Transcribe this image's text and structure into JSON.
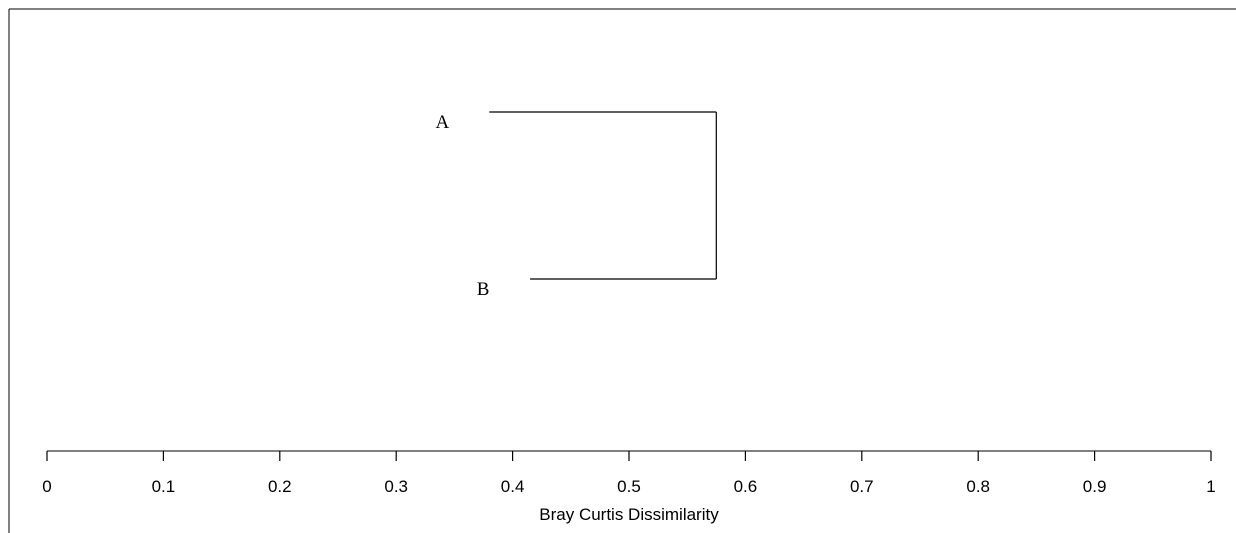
{
  "chart_data": {
    "type": "dendrogram",
    "title": "",
    "xlabel": "Bray Curtis Dissimilarity",
    "ylabel": "",
    "xlim": [
      0,
      1
    ],
    "xticks": [
      0,
      0.1,
      0.2,
      0.3,
      0.4,
      0.5,
      0.6,
      0.7,
      0.8,
      0.9,
      1
    ],
    "tick_labels": [
      "0",
      "0.1",
      "0.2",
      "0.3",
      "0.4",
      "0.5",
      "0.6",
      "0.7",
      "0.8",
      "0.9",
      "1"
    ],
    "grid": false,
    "leaves": [
      {
        "label": "A",
        "start": 0.38
      },
      {
        "label": "B",
        "start": 0.415
      }
    ],
    "merge": {
      "left": "A",
      "right": "B",
      "height": 0.575
    },
    "colors": {
      "line": "#000000",
      "text": "#000000",
      "background": "#ffffff"
    }
  }
}
